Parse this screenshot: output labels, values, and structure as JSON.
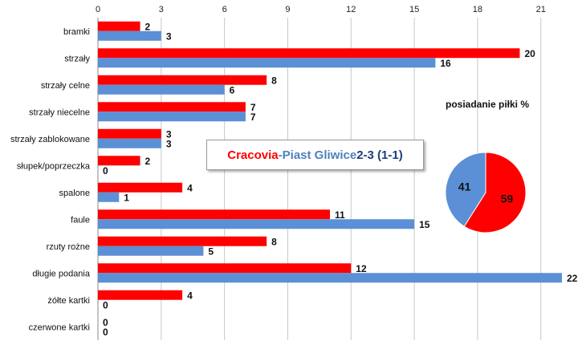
{
  "chart_data": [
    {
      "type": "bar",
      "orientation": "horizontal",
      "categories": [
        "bramki",
        "strzały",
        "strzały celne",
        "strzały niecelne",
        "strzały zablokowane",
        "słupek/poprzeczka",
        "spalone",
        "faule",
        "rzuty rożne",
        "długie podania",
        "żółte kartki",
        "czerwone kartki"
      ],
      "series": [
        {
          "name": "Cracovia",
          "color": "#ff0000",
          "values": [
            2,
            20,
            8,
            7,
            3,
            2,
            4,
            11,
            8,
            12,
            4,
            0
          ]
        },
        {
          "name": "Piast Gliwice",
          "color": "#5b8fd6",
          "values": [
            3,
            16,
            6,
            7,
            3,
            0,
            1,
            15,
            5,
            22,
            0,
            0
          ]
        }
      ],
      "xlim": [
        0,
        22
      ],
      "xticks": [
        0,
        3,
        6,
        9,
        12,
        15,
        18,
        21
      ],
      "x_axis_position": "top",
      "grid": true,
      "data_labels": true
    },
    {
      "type": "pie",
      "title": "posiadanie piłki %",
      "labels": [
        "Cracovia",
        "Piast Gliwice"
      ],
      "values": [
        59,
        41
      ],
      "colors": [
        "#ff0000",
        "#5b8fd6"
      ]
    }
  ],
  "match": {
    "home": "Cracovia",
    "separator": " - ",
    "away": "Piast Gliwice",
    "score": " 2-3 (1-1)",
    "home_color": "#ff0000",
    "away_color": "#4f81bd",
    "score_color": "#1f3d7a"
  }
}
